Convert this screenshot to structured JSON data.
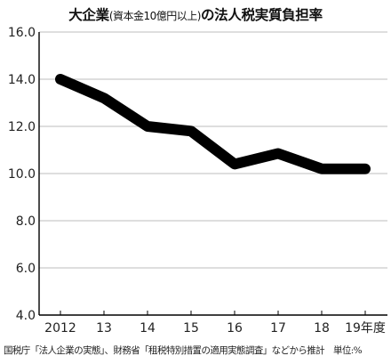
{
  "title": {
    "main_a": "大企業",
    "sub": "(資本金10億円以上)",
    "main_b": "の法人税実質負担率"
  },
  "source_note": "国税庁「法人企業の実態」、財務省「租税特別措置の適用実態調査」などから推計　単位:%",
  "chart_data": {
    "type": "line",
    "title": "大企業(資本金10億円以上)の法人税実質負担率",
    "xlabel": "",
    "ylabel": "",
    "categories": [
      "2012",
      "13",
      "14",
      "15",
      "16",
      "17",
      "18",
      "19年度"
    ],
    "series": [
      {
        "name": "",
        "values": [
          14.0,
          13.2,
          12.0,
          11.8,
          10.4,
          10.85,
          10.2,
          10.2
        ]
      }
    ],
    "ylim": [
      4.0,
      16.0
    ],
    "yticks": [
      "4.0",
      "6.0",
      "8.0",
      "10.0",
      "12.0",
      "14.0",
      "16.0"
    ],
    "grid": true,
    "line_color": "#000000",
    "grid_color": "#bdbdbd"
  }
}
